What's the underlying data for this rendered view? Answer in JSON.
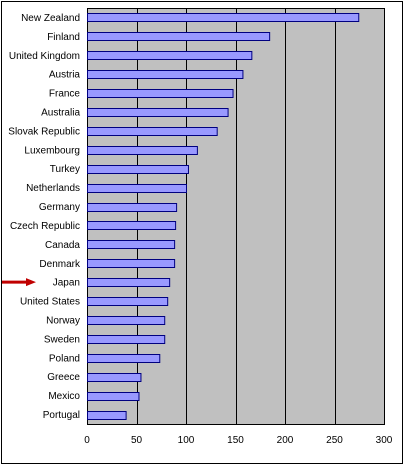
{
  "chart_data": {
    "type": "bar",
    "orientation": "horizontal",
    "title": "",
    "xlabel": "",
    "ylabel": "",
    "categories": [
      "New Zealand",
      "Finland",
      "United Kingdom",
      "Austria",
      "France",
      "Australia",
      "Slovak Republic",
      "Luxembourg",
      "Turkey",
      "Netherlands",
      "Germany",
      "Czech Republic",
      "Canada",
      "Denmark",
      "Japan",
      "United States",
      "Norway",
      "Sweden",
      "Poland",
      "Greece",
      "Mexico",
      "Portugal"
    ],
    "values": [
      274,
      184,
      166,
      157,
      147,
      142,
      131,
      111,
      102,
      100,
      90,
      89,
      88,
      88,
      83,
      81,
      78,
      78,
      73,
      54,
      52,
      39
    ],
    "xlim": [
      0,
      300
    ],
    "xticks": [
      0,
      50,
      100,
      150,
      200,
      250,
      300
    ],
    "grid": "vertical",
    "highlighted_category": "Japan",
    "colors": {
      "bar_fill": "#9999ff",
      "bar_stroke": "#000080",
      "plot_background": "#c0c0c0",
      "gridline": "#000000",
      "arrow": "#c00000"
    }
  }
}
